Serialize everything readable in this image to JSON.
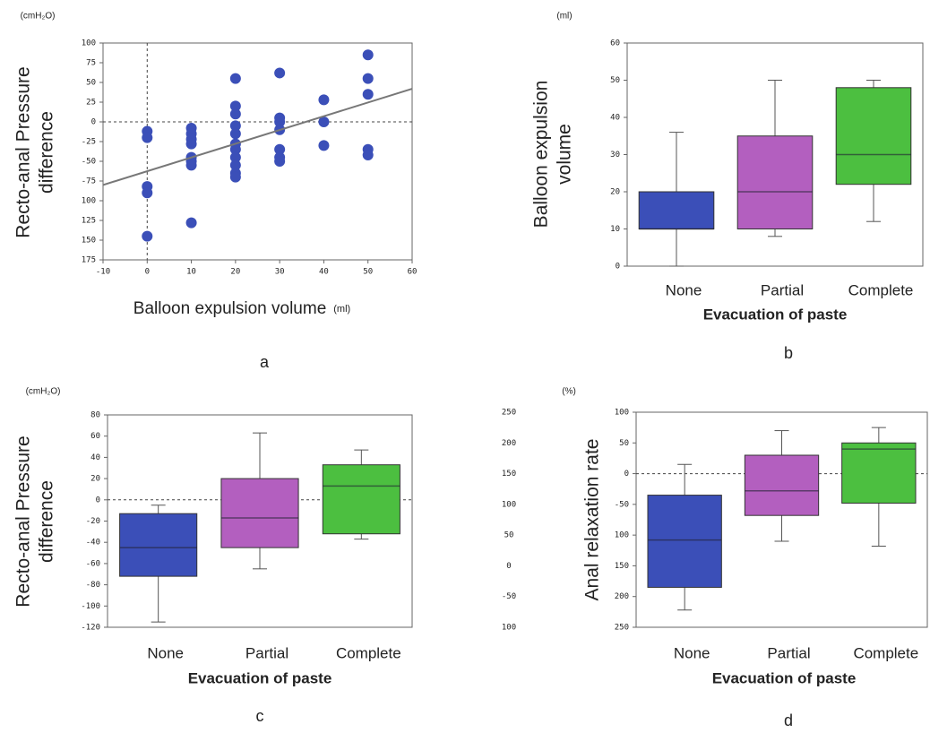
{
  "chart_data": [
    {
      "type": "scatter",
      "panel": "a",
      "unit": "(cmH₂O)",
      "y_label": [
        "Recto-anal Pressure",
        "difference"
      ],
      "x_label": "Balloon expulsion volume",
      "x_unit": "(ml)",
      "color": "#3b4fb8",
      "x": [
        0,
        0,
        0,
        0,
        0,
        10,
        10,
        10,
        10,
        10,
        10,
        10,
        10,
        20,
        20,
        20,
        20,
        20,
        20,
        20,
        20,
        20,
        20,
        20,
        30,
        30,
        30,
        30,
        30,
        30,
        30,
        40,
        40,
        40,
        50,
        50,
        50,
        50,
        50
      ],
      "y": [
        -12,
        -20,
        -82,
        -90,
        -145,
        -8,
        -15,
        -22,
        -28,
        -45,
        -50,
        -55,
        -128,
        55,
        20,
        10,
        -5,
        -15,
        -28,
        -35,
        -45,
        -55,
        -65,
        -70,
        62,
        5,
        0,
        -10,
        -35,
        -45,
        -50,
        28,
        0,
        -30,
        85,
        55,
        35,
        -35,
        -42
      ],
      "fit": {
        "x": [
          -10,
          60
        ],
        "y": [
          -80,
          42
        ]
      },
      "xlim": [
        -10,
        60
      ],
      "xticks": [
        -10,
        0,
        10,
        20,
        30,
        40,
        50,
        60
      ],
      "ylim": [
        -175,
        100
      ],
      "yticks": [
        100,
        75,
        50,
        25,
        0,
        -25,
        -50,
        -75,
        {
          "value": -100,
          "label": "100"
        },
        {
          "value": -125,
          "label": "125"
        },
        {
          "value": -150,
          "label": "150"
        },
        {
          "value": -175,
          "label": "175"
        }
      ],
      "zero_line": true,
      "x_zero_line": true
    },
    {
      "type": "box",
      "panel": "b",
      "unit": "(ml)",
      "y_label": [
        "Balloon expulsion",
        "volume"
      ],
      "x_label": "Evacuation of paste",
      "categories": [
        "None",
        "Partial",
        "Complete"
      ],
      "colors": [
        "#3b4fb8",
        "#b35fbf",
        "#4cbf40"
      ],
      "min": [
        0,
        8,
        12
      ],
      "q1": [
        10,
        10,
        22
      ],
      "median": [
        10,
        20,
        30
      ],
      "q3": [
        20,
        35,
        48
      ],
      "max": [
        36,
        50,
        50
      ],
      "ylim": [
        0,
        60
      ],
      "yticks": [
        0,
        10,
        20,
        30,
        40,
        50,
        60
      ],
      "zero_line": false
    },
    {
      "type": "box",
      "panel": "c",
      "unit": "(cmH₂O)",
      "y_label": [
        "Recto-anal Pressure",
        "difference"
      ],
      "x_label": "Evacuation of paste",
      "categories": [
        "None",
        "Partial",
        "Complete"
      ],
      "colors": [
        "#3b4fb8",
        "#b35fbf",
        "#4cbf40"
      ],
      "min": [
        -115,
        -65,
        -37
      ],
      "q1": [
        -72,
        -45,
        -32
      ],
      "median": [
        -45,
        -17,
        13
      ],
      "q3": [
        -13,
        20,
        33
      ],
      "max": [
        -5,
        63,
        47
      ],
      "ylim": [
        -120,
        80
      ],
      "yticks": [
        80,
        60,
        40,
        20,
        0,
        -20,
        -40,
        -60,
        -80,
        -100,
        -120
      ],
      "zero_line": true
    },
    {
      "type": "box",
      "panel": "d",
      "unit": "(%)",
      "y_label": [
        "Anal relaxation rate"
      ],
      "x_label": "Evacuation of paste",
      "categories": [
        "None",
        "Partial",
        "Complete"
      ],
      "colors": [
        "#3b4fb8",
        "#b35fbf",
        "#4cbf40"
      ],
      "min": [
        -222,
        -110,
        -118
      ],
      "q1": [
        -185,
        -68,
        -48
      ],
      "median": [
        -108,
        -28,
        40
      ],
      "q3": [
        -35,
        30,
        50
      ],
      "max": [
        15,
        70,
        75
      ],
      "ylim": [
        -250,
        100
      ],
      "yticks": [
        100,
        50,
        0,
        -50,
        {
          "value": -100,
          "label": "100"
        },
        {
          "value": -150,
          "label": "150"
        },
        {
          "value": -200,
          "label": "200"
        },
        {
          "value": -250,
          "label": "250"
        }
      ],
      "y2lim": [
        -100,
        250
      ],
      "y2ticks": [
        250,
        200,
        150,
        100,
        50,
        0,
        -50,
        {
          "value": -100,
          "label": "100"
        }
      ],
      "zero_line": true
    }
  ]
}
